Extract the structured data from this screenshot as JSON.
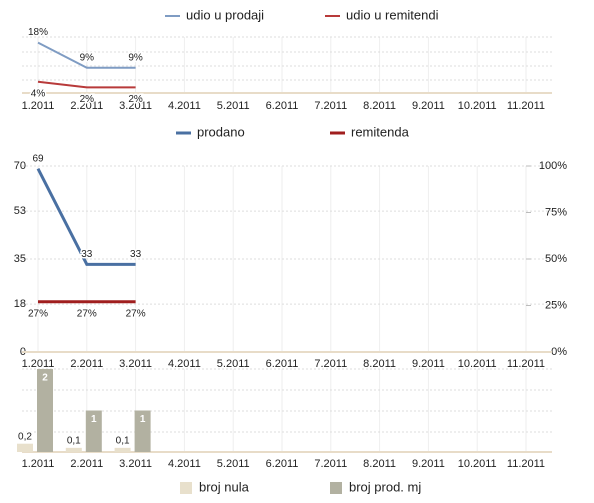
{
  "chart_data": [
    {
      "type": "line",
      "categories": [
        "1.2011",
        "2.2011",
        "3.2011",
        "4.2011",
        "5.2011",
        "6.2011",
        "7.2011",
        "8.2011",
        "9.2011",
        "10.2011",
        "11.2011"
      ],
      "ylim": [
        0,
        20
      ],
      "series": [
        {
          "name": "udio u prodaji",
          "color": "#7f9cc3",
          "values": [
            18,
            9,
            9,
            null,
            null,
            null,
            null,
            null,
            null,
            null,
            null
          ],
          "value_labels": [
            "18%",
            "9%",
            "9%",
            null,
            null,
            null,
            null,
            null,
            null,
            null,
            null
          ]
        },
        {
          "name": "udio u remitendi",
          "color": "#b83a3a",
          "values": [
            4,
            2,
            2,
            null,
            null,
            null,
            null,
            null,
            null,
            null,
            null
          ],
          "value_labels": [
            "4%",
            "2%",
            "2%",
            null,
            null,
            null,
            null,
            null,
            null,
            null,
            null
          ]
        }
      ]
    },
    {
      "type": "line",
      "categories": [
        "1.2011",
        "2.2011",
        "3.2011",
        "4.2011",
        "5.2011",
        "6.2011",
        "7.2011",
        "8.2011",
        "9.2011",
        "10.2011",
        "11.2011"
      ],
      "ylim": [
        0,
        70
      ],
      "yticks": [
        0,
        18,
        35,
        53,
        70
      ],
      "y2lim": [
        0,
        100
      ],
      "y2ticks": [
        {
          "value": 0,
          "label": "0%"
        },
        {
          "value": 25,
          "label": "25%"
        },
        {
          "value": 50,
          "label": "50%"
        },
        {
          "value": 75,
          "label": "75%"
        },
        {
          "value": 100,
          "label": "100%"
        }
      ],
      "series": [
        {
          "name": "prodano",
          "color": "#4a70a2",
          "values": [
            69,
            33,
            33,
            null,
            null,
            null,
            null,
            null,
            null,
            null,
            null
          ]
        },
        {
          "name": "remitenda",
          "color": "#a01e1e",
          "axis": "y2",
          "values": [
            27,
            27,
            27,
            null,
            null,
            null,
            null,
            null,
            null,
            null,
            null
          ],
          "value_labels": [
            "27%",
            "27%",
            "27%",
            null,
            null,
            null,
            null,
            null,
            null,
            null,
            null
          ]
        }
      ]
    },
    {
      "type": "bar",
      "categories": [
        "1.2011",
        "2.2011",
        "3.2011",
        "4.2011",
        "5.2011",
        "6.2011",
        "7.2011",
        "8.2011",
        "9.2011",
        "10.2011",
        "11.2011"
      ],
      "ylim": [
        0,
        2
      ],
      "series": [
        {
          "name": "broj nula",
          "color": "#e8e0cc",
          "values": [
            0.2,
            0.1,
            0.1,
            null,
            null,
            null,
            null,
            null,
            null,
            null,
            null
          ],
          "value_labels": [
            "0,2",
            "0,1",
            "0,1",
            null,
            null,
            null,
            null,
            null,
            null,
            null,
            null
          ]
        },
        {
          "name": "broj prod. mj",
          "color": "#b2b1a1",
          "values": [
            2,
            1,
            1,
            null,
            null,
            null,
            null,
            null,
            null,
            null,
            null
          ]
        }
      ]
    }
  ]
}
